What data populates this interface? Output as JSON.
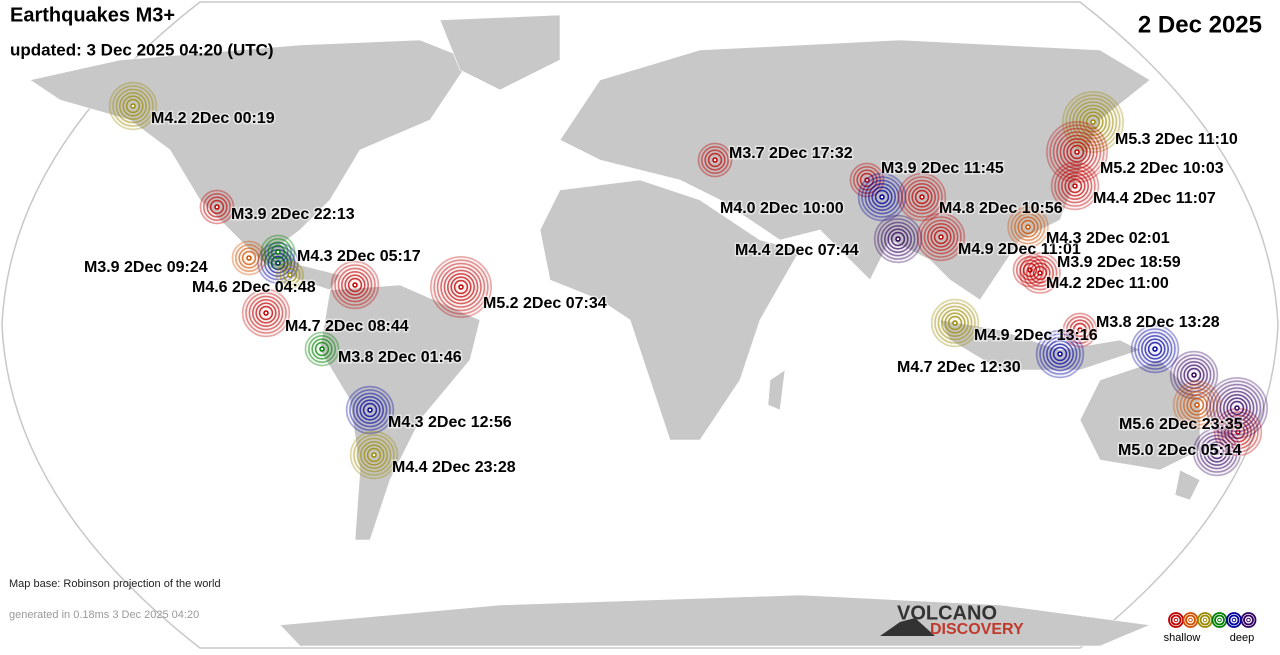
{
  "header": {
    "title": "Earthquakes M3+",
    "updated": "updated:  3 Dec 2025 04:20 (UTC)",
    "date": "2 Dec 2025"
  },
  "quakes": [
    {
      "label": "M4.2  2Dec 00:19",
      "color": "#9a8a00"
    },
    {
      "label": "M3.9  2Dec 22:13",
      "color": "#c00000"
    },
    {
      "label": "M3.9  2Dec 09:24",
      "color": "#d05000"
    },
    {
      "label": "M4.3  2Dec 05:17",
      "color": "#008000"
    },
    {
      "label": "M4.6  2Dec 04:48",
      "color": "#9a8a00"
    },
    {
      "label": "M4.7  2Dec 08:44",
      "color": "#c00000"
    },
    {
      "label": "M3.8  2Dec 01:46",
      "color": "#008000"
    },
    {
      "label": "M5.2  2Dec 07:34",
      "color": "#c00000"
    },
    {
      "label": "M4.3  2Dec 12:56",
      "color": "#0000a0"
    },
    {
      "label": "M4.4  2Dec 23:28",
      "color": "#9a8a00"
    },
    {
      "label": "M3.7  2Dec 17:32",
      "color": "#c00000"
    },
    {
      "label": "M3.9  2Dec 11:45",
      "color": "#c00000"
    },
    {
      "label": "M4.0  2Dec 10:00",
      "color": "#0000a0"
    },
    {
      "label": "M4.8  2Dec 10:56",
      "color": "#c00000"
    },
    {
      "label": "M4.4  2Dec 07:44",
      "color": "#300060"
    },
    {
      "label": "M4.9  2Dec 11:01",
      "color": "#c00000"
    },
    {
      "label": "M4.3  2Dec 02:01",
      "color": "#d05000"
    },
    {
      "label": "M3.9  2Dec 18:59",
      "color": "#c00000"
    },
    {
      "label": "M4.2  2Dec 11:00",
      "color": "#c00000"
    },
    {
      "label": "M5.3  2Dec 11:10",
      "color": "#9a8a00"
    },
    {
      "label": "M5.2  2Dec 10:03",
      "color": "#c00000"
    },
    {
      "label": "M4.4  2Dec 11:07",
      "color": "#c00000"
    },
    {
      "label": "M4.9  2Dec 13:16",
      "color": "#9a8a00"
    },
    {
      "label": "M3.8  2Dec 13:28",
      "color": "#c00000"
    },
    {
      "label": "M4.7  2Dec 12:30",
      "color": "#0000a0"
    },
    {
      "label": "M5.6  2Dec 23:35",
      "color": "#300060"
    },
    {
      "label": "M5.0  2Dec 05:14",
      "color": "#300060"
    }
  ],
  "unlabeled_markers": [
    {
      "color": "#0000a0"
    },
    {
      "color": "#c00000"
    },
    {
      "color": "#0000a0"
    },
    {
      "color": "#300060"
    },
    {
      "color": "#d05000"
    },
    {
      "color": "#c00000"
    }
  ],
  "footer": {
    "map_base": "Map base: Robinson projection of the world",
    "generated": "generated in 0.18ms  3 Dec 2025 04:20"
  },
  "logo": {
    "line1": "VOLCANO",
    "line2": "DISCOVERY"
  },
  "legend": {
    "shallow": "shallow",
    "deep": "deep",
    "colors": [
      "#c00000",
      "#d05000",
      "#9a8a00",
      "#008000",
      "#0000a0",
      "#300060"
    ]
  }
}
